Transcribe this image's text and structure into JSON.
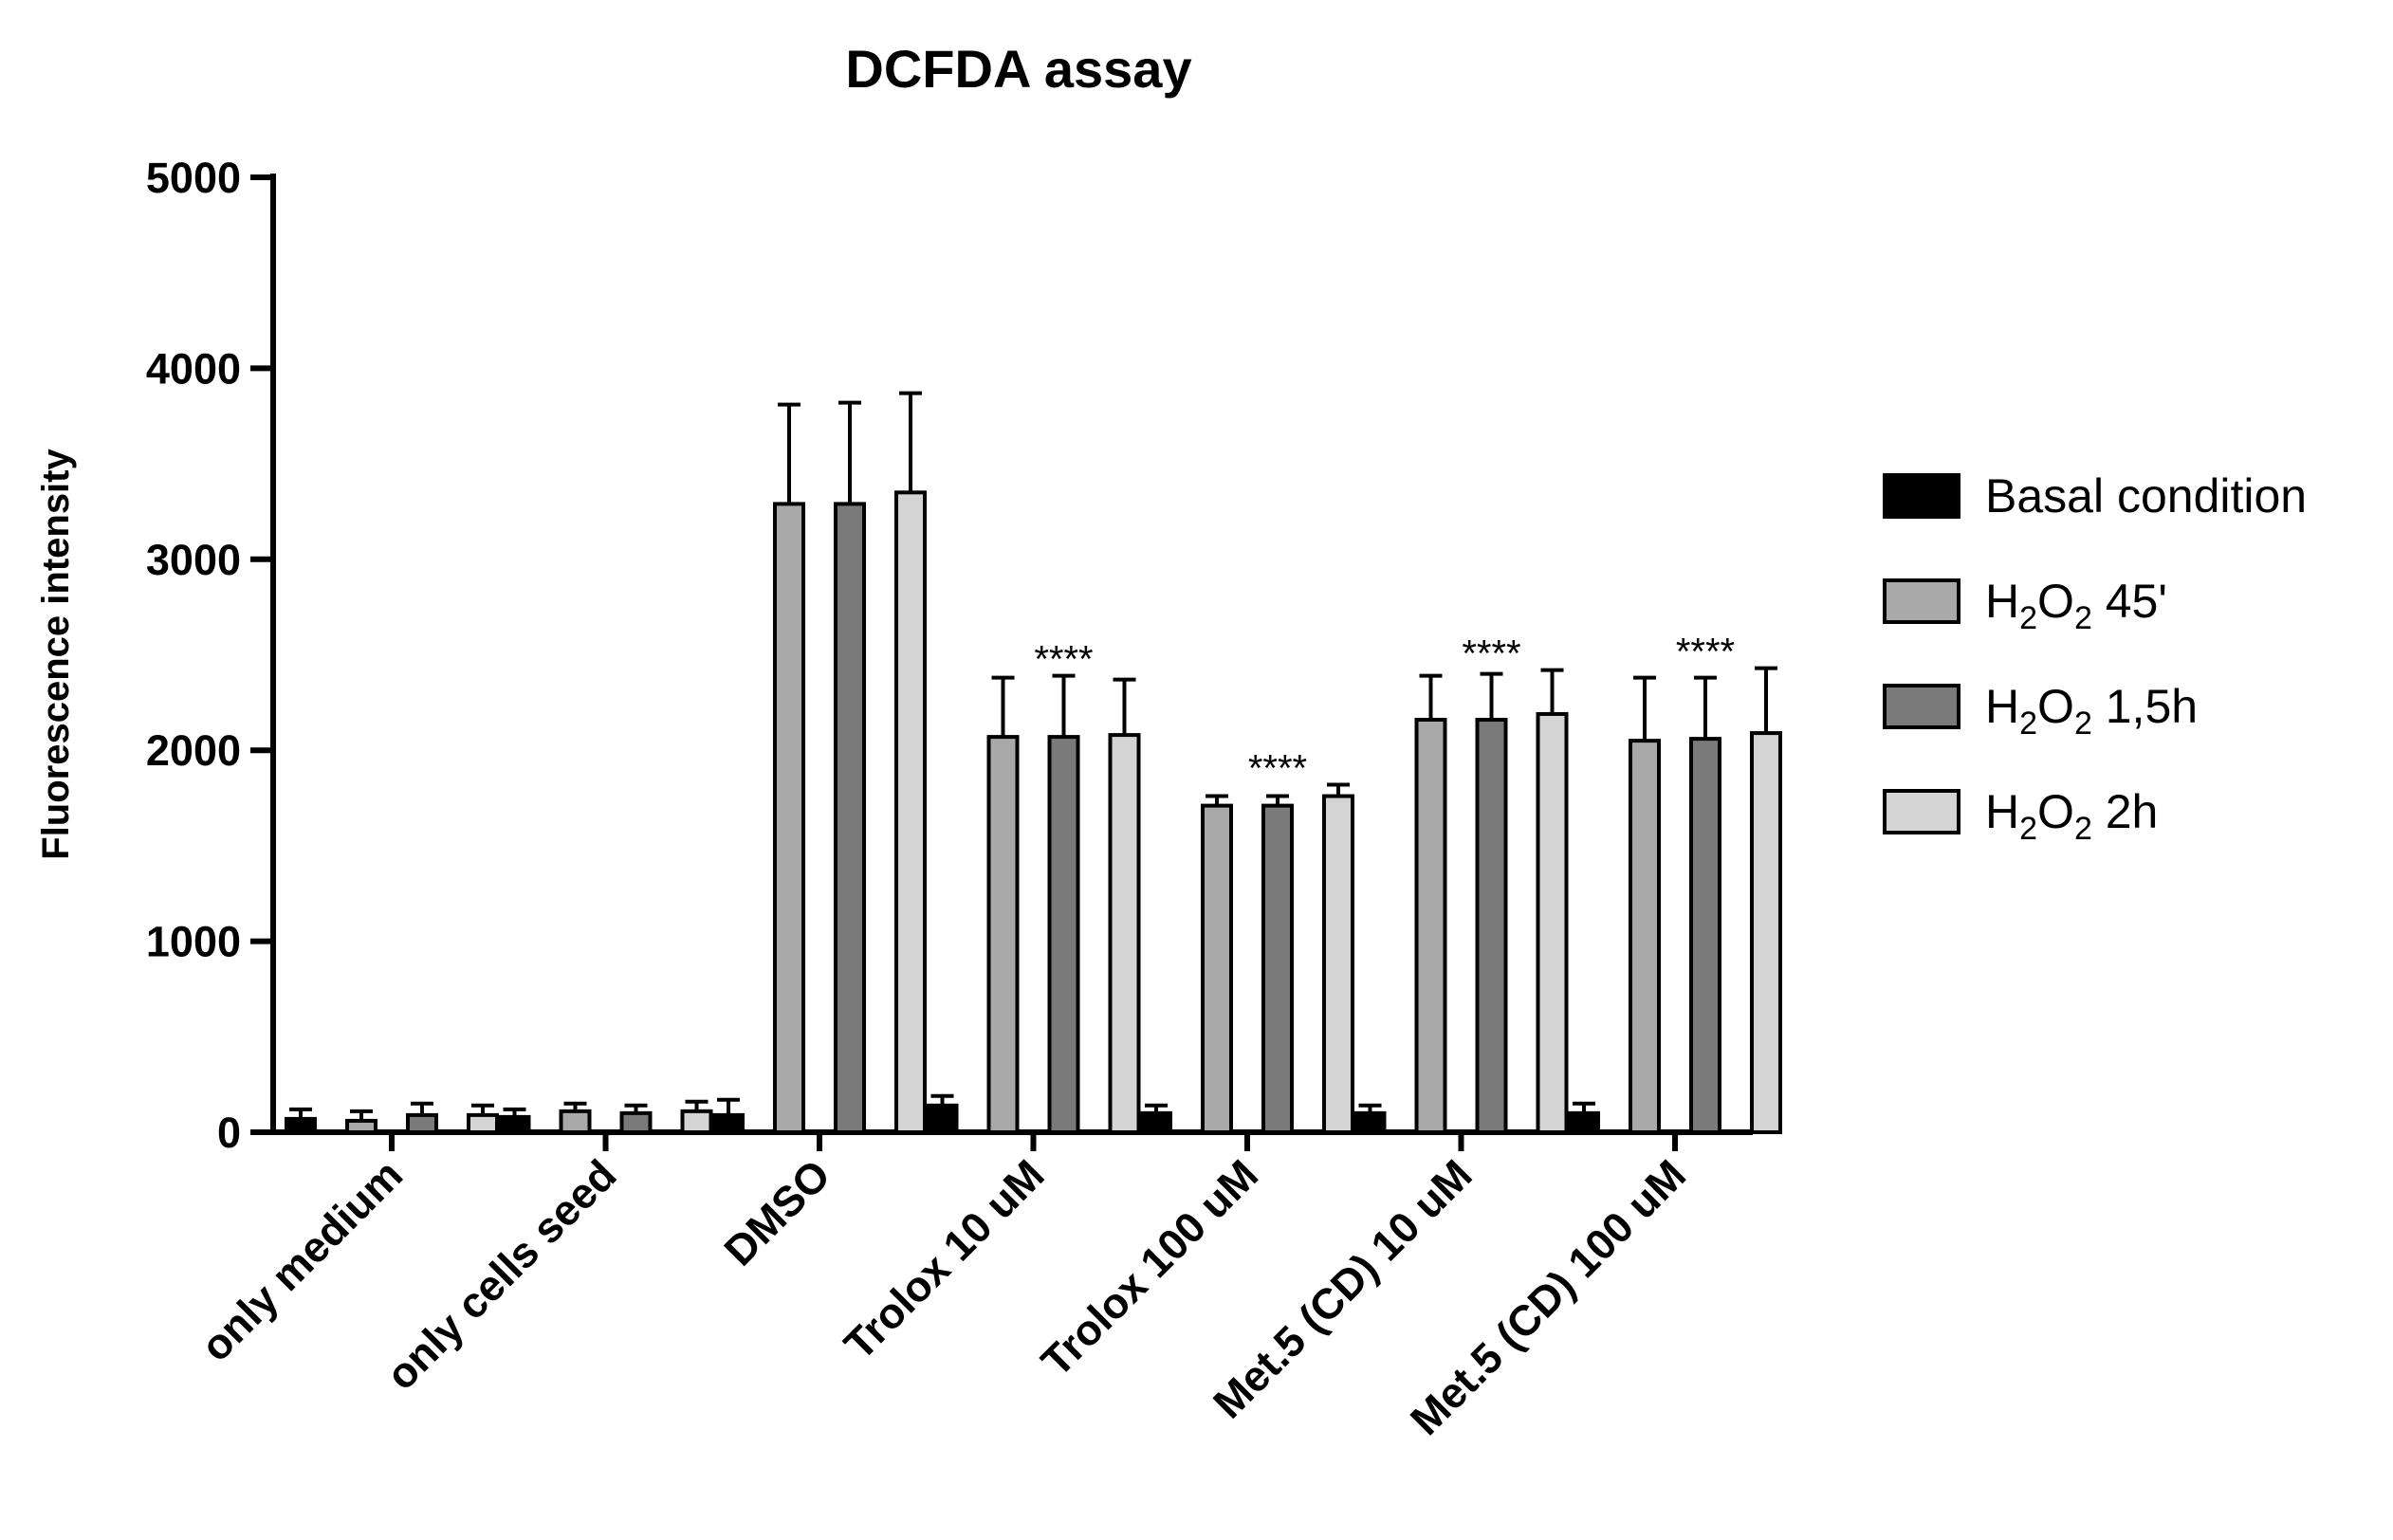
{
  "chart_data": {
    "type": "bar",
    "title": "DCFDA assay",
    "xlabel": "",
    "ylabel": "Fluorescence intensity",
    "ylim": [
      0,
      5000
    ],
    "yticks": [
      0,
      1000,
      2000,
      3000,
      4000,
      5000
    ],
    "grid": false,
    "legend_position": "right",
    "categories": [
      "only medium",
      "only cells seed",
      "DMSO",
      "Trolox 10 uM",
      "Trolox 100 uM",
      "Met.5 (CD) 10 uM",
      "Met.5 (CD) 100 uM"
    ],
    "series": [
      {
        "name": "Basal condition",
        "legend_main": "Basal condition",
        "legend_suffix": "",
        "color": "#000000",
        "values": [
          70,
          80,
          90,
          140,
          100,
          100,
          100
        ],
        "errors": [
          50,
          40,
          80,
          50,
          40,
          40,
          50
        ]
      },
      {
        "name": "H2O2 45'",
        "legend_main": "H",
        "legend_suffix": " 45'",
        "color": "#a9a9a9",
        "values": [
          60,
          110,
          3290,
          2070,
          1710,
          2160,
          2050
        ],
        "errors": [
          50,
          40,
          520,
          310,
          50,
          230,
          330
        ]
      },
      {
        "name": "H2O2 1,5h",
        "legend_main": "H",
        "legend_suffix": " 1,5h",
        "color": "#7a7a7a",
        "values": [
          90,
          100,
          3290,
          2070,
          1710,
          2160,
          2060
        ],
        "errors": [
          60,
          40,
          530,
          320,
          50,
          240,
          320
        ]
      },
      {
        "name": "H2O2 2h",
        "legend_main": "H",
        "legend_suffix": " 2h",
        "color": "#d4d4d4",
        "values": [
          90,
          110,
          3350,
          2080,
          1760,
          2190,
          2090
        ],
        "errors": [
          50,
          50,
          520,
          290,
          60,
          230,
          340
        ]
      }
    ],
    "annotations": [
      {
        "category_index": 3,
        "text": "****"
      },
      {
        "category_index": 4,
        "text": "****"
      },
      {
        "category_index": 5,
        "text": "****"
      },
      {
        "category_index": 6,
        "text": "****"
      }
    ],
    "subscript": "2"
  }
}
